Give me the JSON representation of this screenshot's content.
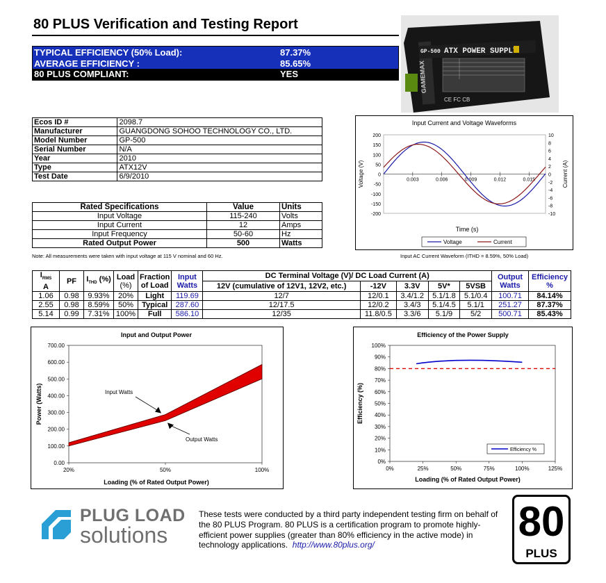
{
  "report_title": "80 PLUS Verification and Testing Report",
  "summary": [
    {
      "label": "TYPICAL EFFICIENCY (50% Load):",
      "value": "87.37%"
    },
    {
      "label": "AVERAGE EFFICIENCY :",
      "value": "85.65%"
    },
    {
      "label": "80 PLUS COMPLIANT:",
      "value": "YES"
    }
  ],
  "product_photo": {
    "label": "ATX POWER SUPPLY",
    "model": "GP-500",
    "brand": "GAMEMAX",
    "marks": "CE FC CB"
  },
  "info": [
    {
      "label": "Ecos ID #",
      "value": "2098.7"
    },
    {
      "label": "Manufacturer",
      "value": "GUANGDONG SOHOO TECHNOLOGY CO., LTD."
    },
    {
      "label": "Model Number",
      "value": "GP-500"
    },
    {
      "label": "Serial Number",
      "value": "N/A"
    },
    {
      "label": "Year",
      "value": "2010"
    },
    {
      "label": "Type",
      "value": "ATX12V"
    },
    {
      "label": "Test Date",
      "value": "6/9/2010"
    }
  ],
  "rated": {
    "headers": [
      "Rated Specifications",
      "Value",
      "Units"
    ],
    "rows": [
      [
        "Input Voltage",
        "115-240",
        "Volts"
      ],
      [
        "Input Current",
        "12",
        "Amps"
      ],
      [
        "Input Frequency",
        "50-60",
        "Hz"
      ],
      [
        "Rated Output Power",
        "500",
        "Watts"
      ]
    ]
  },
  "note": "Note: All measurements were taken with input voltage at 115 V nominal and 60 Hz.",
  "waveform_caption": "Input AC Current Waveform (ITHD = 8.59%, 50% Load)",
  "measurements": {
    "headers": {
      "irms": "I",
      "irms_sub": "RMS",
      "irms_unit": "A",
      "pf": "PF",
      "ithd": "I",
      "ithd_sub": "THD",
      "ithd_suffix": " (%)",
      "load": "Load",
      "load_unit": "(%)",
      "fraction": "Fraction",
      "fraction2": "of Load",
      "input": "Input",
      "input2": "Watts",
      "dc": "DC Terminal Voltage (V)/ DC Load Current (A)",
      "v12": "12V (cumulative of 12V1, 12V2, etc.)",
      "vm12": "-12V",
      "v33": "3.3V",
      "v5": "5V*",
      "v5sb": "5VSB",
      "output": "Output",
      "output2": "Watts",
      "eff": "Efficiency",
      "eff2": "%"
    },
    "rows": [
      {
        "irms": "1.06",
        "pf": "0.98",
        "ithd": "9.93%",
        "load": "20%",
        "fraction": "Light",
        "input": "119.69",
        "v12": "12/7",
        "vm12": "12/0.1",
        "v33": "3.4/1.2",
        "v5": "5.1/1.8",
        "v5sb": "5.1/0.4",
        "output": "100.71",
        "eff": "84.14%"
      },
      {
        "irms": "2.55",
        "pf": "0.98",
        "ithd": "8.59%",
        "load": "50%",
        "fraction": "Typical",
        "input": "287.60",
        "v12": "12/17.5",
        "vm12": "12/0.2",
        "v33": "3.4/3",
        "v5": "5.1/4.5",
        "v5sb": "5.1/1",
        "output": "251.27",
        "eff": "87.37%"
      },
      {
        "irms": "5.14",
        "pf": "0.99",
        "ithd": "7.31%",
        "load": "100%",
        "fraction": "Full",
        "input": "586.10",
        "v12": "12/35",
        "vm12": "11.8/0.5",
        "v33": "3.3/6",
        "v5": "5.1/9",
        "v5sb": "5/2",
        "output": "500.71",
        "eff": "85.43%"
      }
    ]
  },
  "footer": {
    "logo_line1": "PLUG LOAD",
    "logo_line2": "solutions",
    "text": "These tests were conducted by a third party independent testing firm on behalf of the 80 PLUS Program. 80 PLUS is a certification program to promote highly-efficient power supplies (greater than 80% efficiency in the active mode) in technology applications.",
    "link": "http://www.80plus.org/",
    "badge_number": "80",
    "badge_text": "PLUS"
  },
  "chart_data": [
    {
      "type": "line",
      "title": "Input Current and Voltage Waveforms",
      "xlabel": "Time (s)",
      "ylabel": "Voltage (V)",
      "y2label": "Current (A)",
      "xticks": [
        "0.003",
        "0.006",
        "0.009",
        "0.012",
        "0.015"
      ],
      "xlim": [
        0,
        0.0167
      ],
      "ylim": [
        -200,
        200
      ],
      "y2lim": [
        -10,
        10
      ],
      "yticks": [
        "200",
        "150",
        "100",
        "50",
        "0",
        "-50",
        "-100",
        "-150",
        "-200"
      ],
      "y2ticks": [
        "10",
        "8",
        "6",
        "4",
        "2",
        "0",
        "-2",
        "-4",
        "-6",
        "-8",
        "-10"
      ],
      "series": [
        {
          "name": "Voltage",
          "color": "#1a1aa8",
          "amplitude": 163,
          "axis": "left",
          "phase_ms": 0
        },
        {
          "name": "Current",
          "color": "#8b1a1a",
          "amplitude": 7.6,
          "axis": "right",
          "phase_ms": -0.6
        }
      ],
      "legend": "bottom"
    },
    {
      "type": "area",
      "title": "Input and Output Power",
      "xlabel": "Loading (% of Rated Output Power)",
      "ylabel": "Power (Watts)",
      "categories": [
        "20%",
        "50%",
        "100%"
      ],
      "ylim": [
        0,
        700
      ],
      "yticks": [
        "700.00",
        "600.00",
        "500.00",
        "400.00",
        "300.00",
        "200.00",
        "100.00",
        "0.00"
      ],
      "series": [
        {
          "name": "Input Watts",
          "values": [
            119.69,
            287.6,
            586.1
          ]
        },
        {
          "name": "Output Watts",
          "values": [
            100.71,
            251.27,
            500.71
          ]
        }
      ],
      "fill_color": "#e00000"
    },
    {
      "type": "line",
      "title": "Efficiency of the Power Supply",
      "xlabel": "Loading (% of Rated Output Power)",
      "ylabel": "Efficiency (%)",
      "xticks": [
        "0%",
        "25%",
        "50%",
        "75%",
        "100%",
        "125%"
      ],
      "yticks": [
        "100%",
        "90%",
        "80%",
        "70%",
        "60%",
        "50%",
        "40%",
        "30%",
        "20%",
        "10%",
        "0%"
      ],
      "xlim": [
        0,
        125
      ],
      "ylim": [
        0,
        100
      ],
      "threshold": 80,
      "series": [
        {
          "name": "Efficiency %",
          "x": [
            20,
            50,
            100
          ],
          "values": [
            84.14,
            87.37,
            85.43
          ],
          "color": "#0000cc"
        }
      ],
      "legend": "bottom-right"
    }
  ]
}
